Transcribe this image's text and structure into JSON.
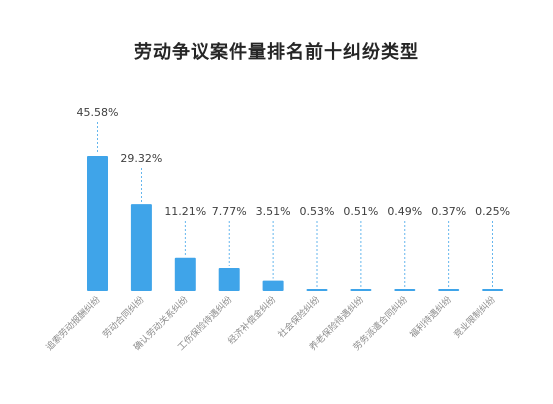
{
  "chart_data": {
    "type": "bar",
    "title": "劳动争议案件量排名前十纠纷类型",
    "xlabel": "",
    "ylabel": "",
    "categories": [
      "追索劳动报酬纠纷",
      "劳动合同纠纷",
      "确认劳动关系纠纷",
      "工伤保险待遇纠纷",
      "经济补偿金纠纷",
      "社会保险纠纷",
      "养老保险待遇纠纷",
      "劳务派遣合同纠纷",
      "福利待遇纠纷",
      "竞业限制纠纷"
    ],
    "values": [
      45.58,
      29.32,
      11.21,
      7.77,
      3.51,
      0.53,
      0.51,
      0.49,
      0.37,
      0.25
    ],
    "value_labels": [
      "45.58%",
      "29.32%",
      "11.21%",
      "7.77%",
      "3.51%",
      "0.53%",
      "0.51%",
      "0.49%",
      "0.37%",
      "0.25%"
    ],
    "unit": "%",
    "grid": false,
    "legend": "none",
    "colors": {
      "bar": "#3fa4e9",
      "leader": "#3fa4e9",
      "text": "#404040",
      "tick": "#8c8c8c"
    }
  }
}
